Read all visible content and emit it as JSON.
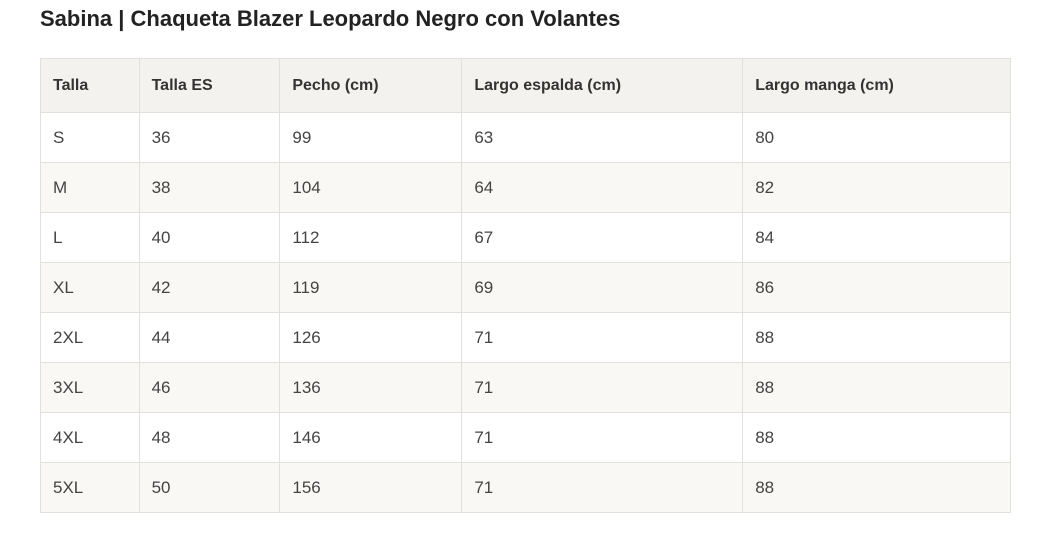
{
  "title": "Sabina | Chaqueta Blazer Leopardo Negro con Volantes",
  "table": {
    "header": [
      "Talla",
      "Talla ES",
      "Pecho (cm)",
      "Largo espalda (cm)",
      "Largo manga (cm)"
    ],
    "rows": [
      [
        "S",
        "36",
        "99",
        "63",
        "80"
      ],
      [
        "M",
        "38",
        "104",
        "64",
        "82"
      ],
      [
        "L",
        "40",
        "112",
        "67",
        "84"
      ],
      [
        "XL",
        "42",
        "119",
        "69",
        "86"
      ],
      [
        "2XL",
        "44",
        "126",
        "71",
        "88"
      ],
      [
        "3XL",
        "46",
        "136",
        "71",
        "88"
      ],
      [
        "4XL",
        "48",
        "146",
        "71",
        "88"
      ],
      [
        "5XL",
        "50",
        "156",
        "71",
        "88"
      ]
    ]
  }
}
